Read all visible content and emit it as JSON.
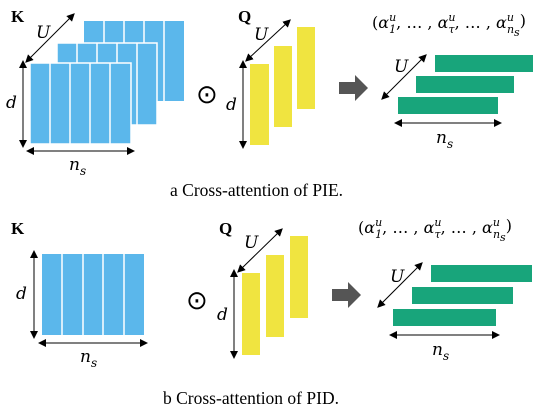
{
  "colors": {
    "key_blue": "#5bb7eb",
    "query_yellow": "#f0e440",
    "output_green": "#18a57b",
    "arrow": "#555555"
  },
  "symbols": {
    "key": "K",
    "query": "Q",
    "U": "U",
    "d": "d",
    "n": "n",
    "s": "s",
    "odot": "⊙"
  },
  "alpha_sequence": {
    "open": "(",
    "alpha": "α",
    "sup": "u",
    "sub1": "1",
    "sep": ", … , ",
    "subtau": "τ",
    "subn": "n",
    "subns": "s",
    "close": ")"
  },
  "panel_a": {
    "caption_prefix": "a Cross-attention of ",
    "caption_model": "PIE."
  },
  "panel_b": {
    "caption_prefix": "b Cross-attention of ",
    "caption_model": "PID."
  }
}
